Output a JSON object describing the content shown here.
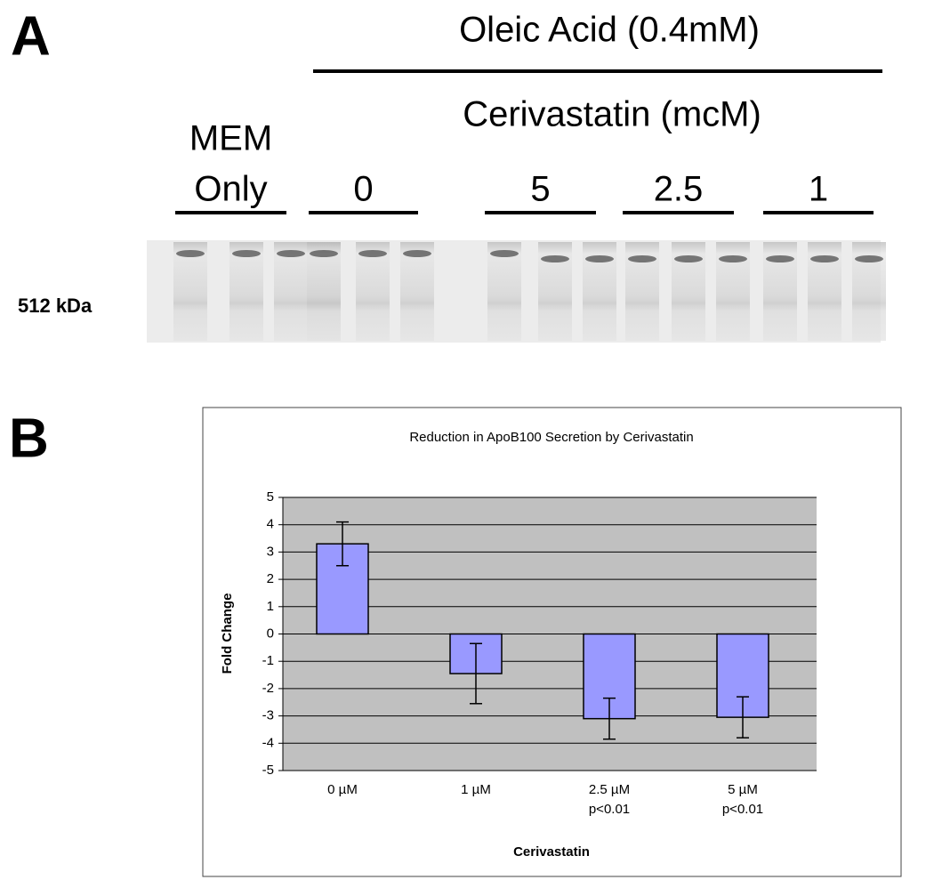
{
  "panel_a": {
    "letter": "A",
    "treatment": "Oleic Acid (0.4mM)",
    "drug": "Cerivastatin (mcM)",
    "groups": [
      {
        "lines": [
          "MEM",
          "Only"
        ]
      },
      {
        "lines": [
          "0"
        ]
      },
      {
        "lines": [
          "5"
        ]
      },
      {
        "lines": [
          "2.5"
        ]
      },
      {
        "lines": [
          "1"
        ]
      }
    ],
    "band_label": "512 kDa"
  },
  "panel_b": {
    "letter": "B"
  },
  "chart_data": {
    "type": "bar",
    "title": "Reduction in  ApoB100 Secretion by Cerivastatin",
    "categories": [
      "0 µM",
      "1 µM",
      "2.5 µM",
      "5 µM"
    ],
    "category_notes": [
      null,
      null,
      "p<0.01",
      "p<0.01"
    ],
    "values": [
      3.3,
      -1.45,
      -3.1,
      -3.05
    ],
    "errors": [
      0.8,
      1.1,
      0.75,
      0.75
    ],
    "color": "#9999ff",
    "x_label": "Cerivastatin",
    "y_label": "Fold Change",
    "ylim": [
      -5,
      5
    ],
    "yticks": [
      -5,
      -4,
      -3,
      -2,
      -1,
      0,
      1,
      2,
      3,
      4,
      5
    ],
    "grid": true
  }
}
